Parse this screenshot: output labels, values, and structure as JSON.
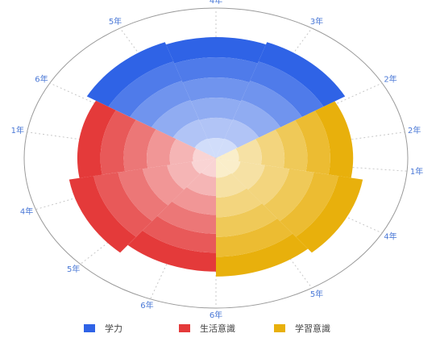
{
  "chart_data": {
    "type": "polar-bar",
    "center": "middle",
    "outer_ring": true,
    "radial_gridlines": true,
    "angle_tick_labels": [
      {
        "label": "4年",
        "angle": 0
      },
      {
        "label": "3年",
        "angle": 30
      },
      {
        "label": "2年",
        "angle": 60
      },
      {
        "label": "2年",
        "angle": 80
      },
      {
        "label": "1年",
        "angle": 95
      },
      {
        "label": "4年",
        "angle": 120
      },
      {
        "label": "5年",
        "angle": 150
      },
      {
        "label": "6年",
        "angle": 180
      },
      {
        "label": "6年",
        "angle": 200
      },
      {
        "label": "5年",
        "angle": 225
      },
      {
        "label": "4年",
        "angle": 250
      },
      {
        "label": "1年",
        "angle": 280
      },
      {
        "label": "6年",
        "angle": 300
      },
      {
        "label": "5年",
        "angle": 330
      }
    ],
    "series": [
      {
        "name": "学力",
        "color": "#2f63e6",
        "sectors": [
          {
            "start": 300,
            "end": 340,
            "value": 1.0
          },
          {
            "start": 340,
            "end": 20,
            "value": 0.98
          },
          {
            "start": 20,
            "end": 60,
            "value": 1.0
          }
        ]
      },
      {
        "name": "生活意識",
        "color": "#e43a3a",
        "sectors": [
          {
            "start": 180,
            "end": 220,
            "value": 0.92
          },
          {
            "start": 220,
            "end": 260,
            "value": 1.0
          },
          {
            "start": 260,
            "end": 300,
            "value": 0.93
          }
        ]
      },
      {
        "name": "学習意識",
        "color": "#e8b00c",
        "sectors": [
          {
            "start": 60,
            "end": 100,
            "value": 0.92
          },
          {
            "start": 100,
            "end": 140,
            "value": 1.0
          },
          {
            "start": 140,
            "end": 180,
            "value": 0.96
          }
        ]
      }
    ],
    "legend": {
      "position": "bottom"
    }
  }
}
